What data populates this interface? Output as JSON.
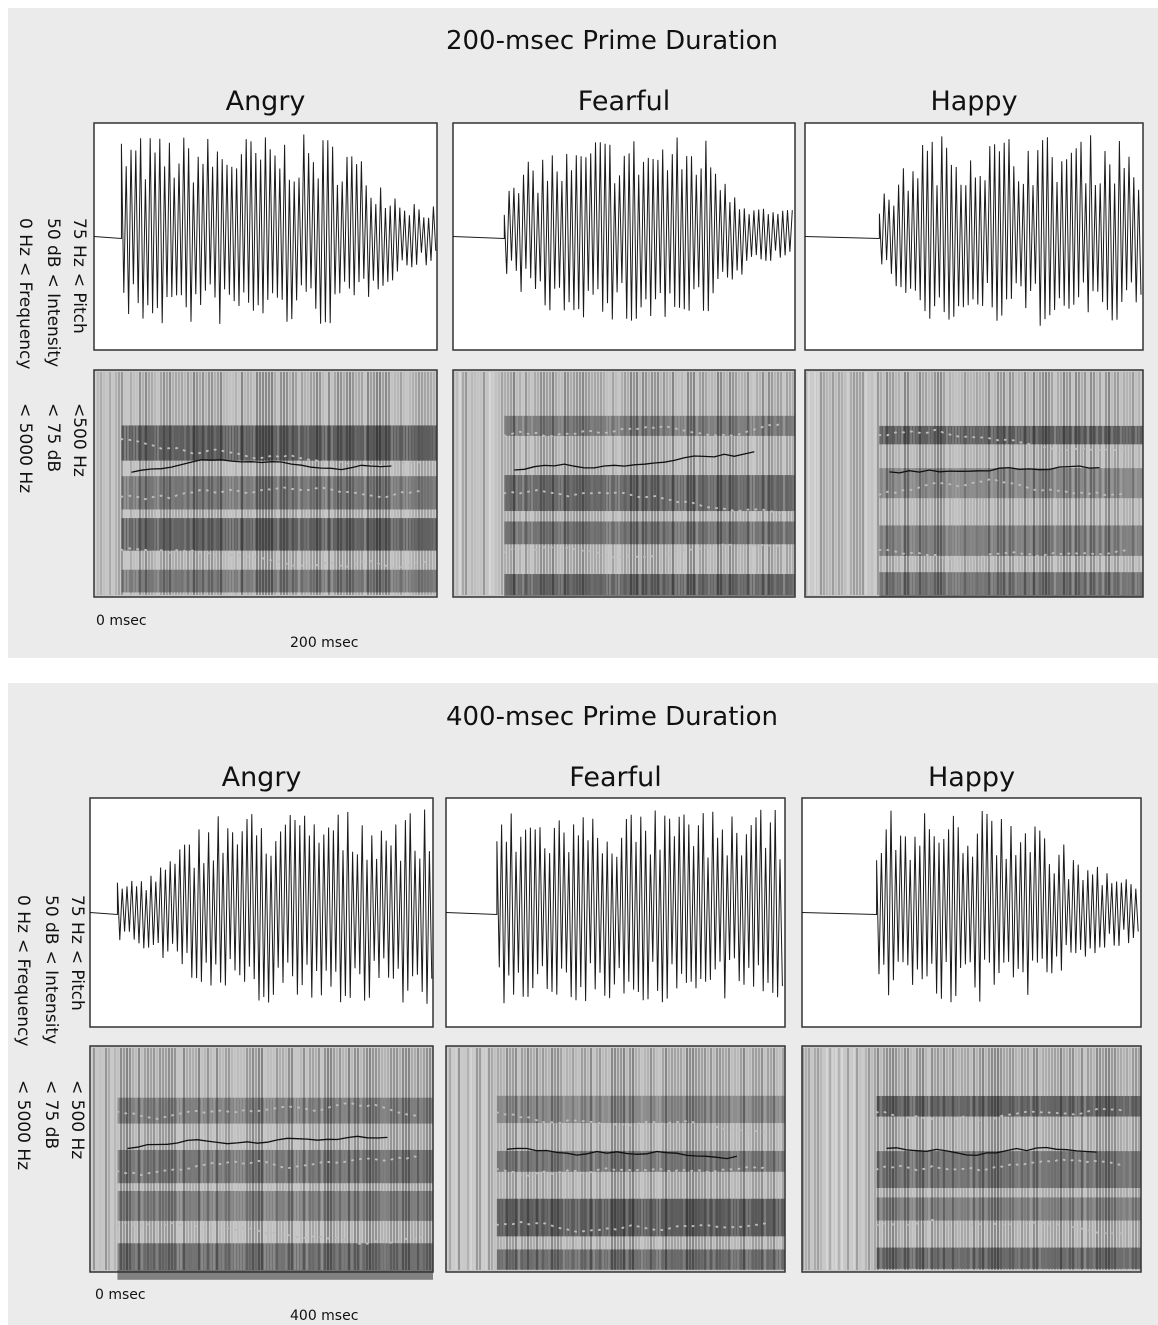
{
  "panels": [
    {
      "title": "200-msec Prime Duration",
      "columns": [
        "Angry",
        "Fearful",
        "Happy"
      ],
      "axis_labels": [
        {
          "low": "0 Hz",
          "name": "< Frequency",
          "high": "< 5000 Hz"
        },
        {
          "low": "50 dB",
          "name": "< Intensity",
          "high": "< 75 dB"
        },
        {
          "low": "75 Hz",
          "name": "< Pitch",
          "high": "<500 Hz"
        }
      ],
      "time_start": "0 msec",
      "time_end": "200 msec"
    },
    {
      "title": "400-msec Prime Duration",
      "columns": [
        "Angry",
        "Fearful",
        "Happy"
      ],
      "axis_labels": [
        {
          "low": "0 Hz",
          "name": "< Frequency",
          "high": "< 5000 Hz"
        },
        {
          "low": "50 dB",
          "name": "< Intensity",
          "high": "< 75 dB"
        },
        {
          "low": "75 Hz",
          "name": "< Pitch",
          "high": "< 500 Hz"
        }
      ],
      "time_start": "0 msec",
      "time_end": "400 msec"
    }
  ]
}
